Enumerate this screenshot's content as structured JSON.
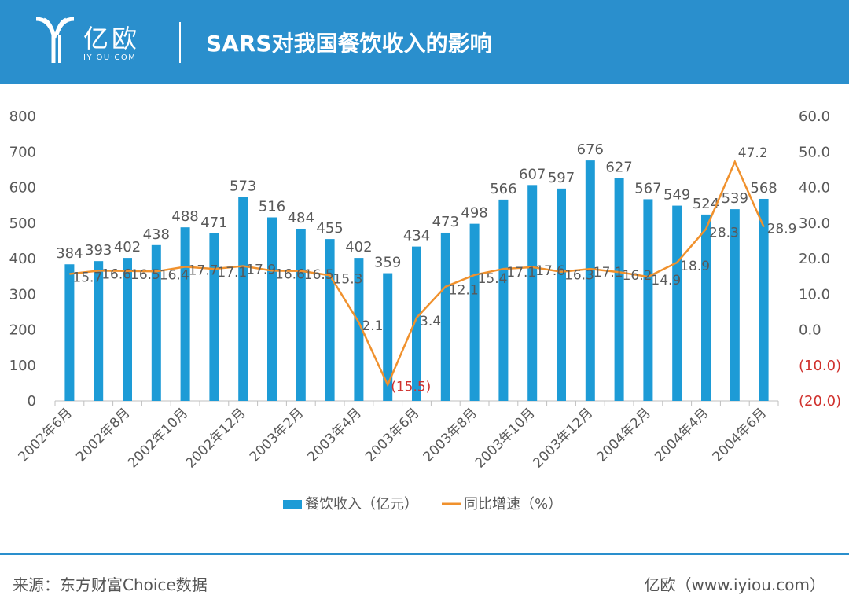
{
  "header": {
    "brand_cn": "亿欧",
    "brand_url": "IYIOU·COM",
    "title": "SARS对我国餐饮收入的影响",
    "logo_icon": "yiou-logo-icon"
  },
  "colors": {
    "header_bg": "#2a8fcd",
    "bar": "#1d9bd6",
    "line": "#f0912d",
    "negative": "#d0312d",
    "text": "#595959",
    "axis": "#bfbfbf"
  },
  "chart_data": {
    "type": "bar+line",
    "title": "SARS对我国餐饮收入的影响",
    "categories": [
      "2002年6月",
      "2002年7月",
      "2002年8月",
      "2002年9月",
      "2002年10月",
      "2002年11月",
      "2002年12月",
      "2003年1月",
      "2003年2月",
      "2003年3月",
      "2003年4月",
      "2003年5月",
      "2003年6月",
      "2003年7月",
      "2003年8月",
      "2003年9月",
      "2003年10月",
      "2003年11月",
      "2003年12月",
      "2004年1月",
      "2004年2月",
      "2004年3月",
      "2004年4月",
      "2004年5月",
      "2004年6月"
    ],
    "x_tick_labels": [
      "2002年6月",
      "2002年8月",
      "2002年10月",
      "2002年12月",
      "2003年2月",
      "2003年4月",
      "2003年6月",
      "2003年8月",
      "2003年10月",
      "2003年12月",
      "2004年2月",
      "2004年4月",
      "2004年6月"
    ],
    "series": [
      {
        "name": "餐饮收入（亿元）",
        "type": "bar",
        "axis": "left",
        "values": [
          384,
          393,
          402,
          438,
          488,
          471,
          573,
          516,
          484,
          455,
          402,
          359,
          434,
          473,
          498,
          566,
          607,
          597,
          676,
          627,
          567,
          549,
          524,
          539,
          568
        ]
      },
      {
        "name": "同比增速（%）",
        "type": "line",
        "axis": "right",
        "values": [
          15.7,
          16.6,
          16.5,
          16.4,
          17.7,
          17.1,
          17.9,
          16.6,
          16.5,
          15.3,
          2.1,
          -15.5,
          3.4,
          12.1,
          15.4,
          17.1,
          17.6,
          16.3,
          17.1,
          16.2,
          14.9,
          18.9,
          28.3,
          47.2,
          28.9
        ],
        "labels": [
          "15.7",
          "16.6",
          "16.5",
          "16.4",
          "17.7",
          "17.1",
          "17.9",
          "16.6",
          "16.5",
          "15.3",
          "2.1",
          "(15.5)",
          "3.4",
          "12.1",
          "15.4",
          "17.1",
          "17.6",
          "16.3",
          "17.1",
          "16.2",
          "14.9",
          "18.9",
          "28.3",
          "47.2",
          "28.9"
        ]
      }
    ],
    "y_left": {
      "ylim": [
        0,
        800
      ],
      "ticks": [
        "0",
        "100",
        "200",
        "300",
        "400",
        "500",
        "600",
        "700",
        "800"
      ]
    },
    "y_right": {
      "ylim": [
        -20,
        60
      ],
      "ticks": [
        "(20.0)",
        "(10.0)",
        "0.0",
        "10.0",
        "20.0",
        "30.0",
        "40.0",
        "50.0",
        "60.0"
      ]
    },
    "legend": {
      "position": "bottom-center",
      "bar_label": "餐饮收入（亿元）",
      "line_label": "同比增速（%）"
    },
    "grid": false
  },
  "footer": {
    "source": "来源：东方财富Choice数据",
    "credit": "亿欧（www.iyiou.com）"
  }
}
